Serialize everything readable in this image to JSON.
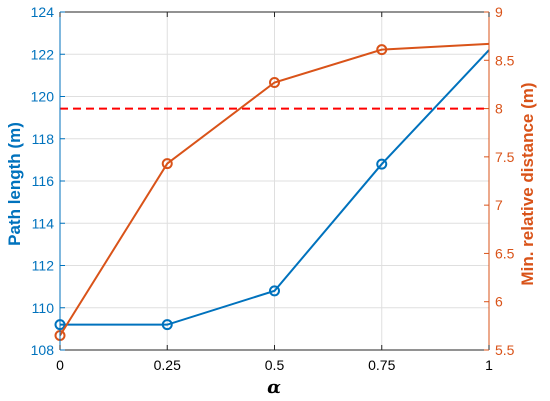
{
  "chart_data": {
    "type": "line",
    "xlabel": "α",
    "x": [
      0,
      0.25,
      0.5,
      0.75,
      1
    ],
    "x_ticks": [
      "0",
      "0.25",
      "0.5",
      "0.75",
      "1"
    ],
    "xlim": [
      0,
      1
    ],
    "grid": true,
    "left_axis": {
      "label": "Path length (m)",
      "ylim": [
        108,
        124
      ],
      "ticks": [
        108,
        110,
        112,
        114,
        116,
        118,
        120,
        122,
        124
      ],
      "color": "#0072BD"
    },
    "right_axis": {
      "label": "Min. relative distance (m)",
      "ylim": [
        5.5,
        9
      ],
      "ticks": [
        "5.5",
        "6",
        "6.5",
        "7",
        "7.5",
        "8",
        "8.5",
        "9"
      ],
      "color": "#D95319"
    },
    "series": [
      {
        "axis": "left",
        "color": "#0072BD",
        "values": [
          109.2,
          109.2,
          110.8,
          116.8,
          122.2
        ],
        "marker_count": 4
      },
      {
        "axis": "right",
        "color": "#D95319",
        "values": [
          5.65,
          7.43,
          8.27,
          8.61,
          8.67
        ],
        "marker_count": 4
      }
    ],
    "reference_line": {
      "axis": "right",
      "value": 8,
      "color": "#FF0000",
      "style": "dashed"
    }
  }
}
